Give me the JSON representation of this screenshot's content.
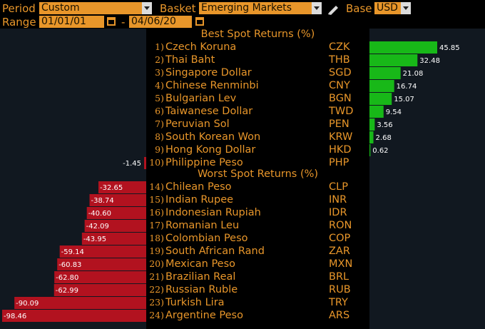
{
  "header": {
    "period_label": "Period",
    "period_value": "Custom",
    "basket_label": "Basket",
    "basket_value": "Emerging Markets",
    "base_label": "Base",
    "base_value": "USD",
    "range_label": "Range",
    "start_date": "01/01/01",
    "range_separator": "-",
    "end_date": "04/06/20"
  },
  "best_title": "Best Spot Returns (%)",
  "worst_title": "Worst Spot Returns (%)",
  "colors": {
    "positive": "#18b818",
    "negative": "#b2121f",
    "accent": "#e8962a"
  },
  "chart_data": {
    "type": "bar",
    "best": [
      {
        "rank": "1)",
        "name": "Czech Koruna",
        "code": "CZK",
        "value": 45.85
      },
      {
        "rank": "2)",
        "name": "Thai Baht",
        "code": "THB",
        "value": 32.48
      },
      {
        "rank": "3)",
        "name": "Singapore Dollar",
        "code": "SGD",
        "value": 21.08
      },
      {
        "rank": "4)",
        "name": "Chinese Renminbi",
        "code": "CNY",
        "value": 16.74
      },
      {
        "rank": "5)",
        "name": "Bulgarian Lev",
        "code": "BGN",
        "value": 15.07
      },
      {
        "rank": "6)",
        "name": "Taiwanese Dollar",
        "code": "TWD",
        "value": 9.54
      },
      {
        "rank": "7)",
        "name": "Peruvian Sol",
        "code": "PEN",
        "value": 3.56
      },
      {
        "rank": "8)",
        "name": "South Korean Won",
        "code": "KRW",
        "value": 2.68
      },
      {
        "rank": "9)",
        "name": "Hong Kong Dollar",
        "code": "HKD",
        "value": 0.62
      },
      {
        "rank": "10)",
        "name": "Philippine Peso",
        "code": "PHP",
        "value": -1.45
      }
    ],
    "worst": [
      {
        "rank": "14)",
        "name": "Chilean Peso",
        "code": "CLP",
        "value": -32.65
      },
      {
        "rank": "15)",
        "name": "Indian Rupee",
        "code": "INR",
        "value": -38.74
      },
      {
        "rank": "16)",
        "name": "Indonesian Rupiah",
        "code": "IDR",
        "value": -40.6
      },
      {
        "rank": "17)",
        "name": "Romanian Leu",
        "code": "RON",
        "value": -42.09
      },
      {
        "rank": "18)",
        "name": "Colombian Peso",
        "code": "COP",
        "value": -43.95
      },
      {
        "rank": "19)",
        "name": "South African Rand",
        "code": "ZAR",
        "value": -59.14
      },
      {
        "rank": "20)",
        "name": "Mexican Peso",
        "code": "MXN",
        "value": -60.83
      },
      {
        "rank": "21)",
        "name": "Brazilian Real",
        "code": "BRL",
        "value": -62.8
      },
      {
        "rank": "22)",
        "name": "Russian Ruble",
        "code": "RUB",
        "value": -62.99
      },
      {
        "rank": "23)",
        "name": "Turkish Lira",
        "code": "TRY",
        "value": -90.09
      },
      {
        "rank": "24)",
        "name": "Argentine Peso",
        "code": "ARS",
        "value": -98.46
      }
    ]
  }
}
